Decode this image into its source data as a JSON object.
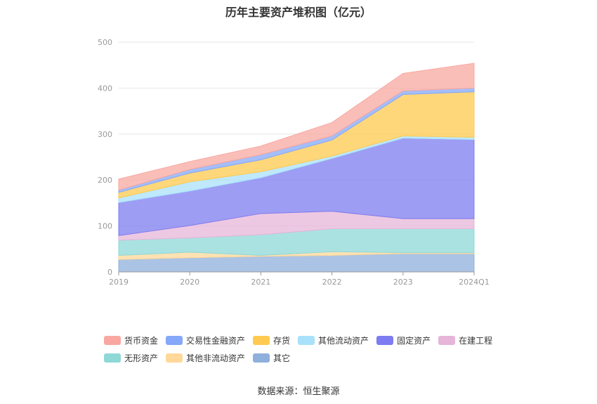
{
  "chart_data": {
    "type": "area",
    "title": "历年主要资产堆积图（亿元）",
    "categories": [
      "2019",
      "2020",
      "2021",
      "2022",
      "2023",
      "2024Q1"
    ],
    "ylim": [
      0,
      500
    ],
    "yticks": [
      0,
      100,
      200,
      300,
      400,
      500
    ],
    "grid": true,
    "legend_position": "bottom",
    "stacked": true,
    "series": [
      {
        "name": "其它",
        "color": "#8fb0dc",
        "values": [
          27,
          31,
          34,
          36,
          40,
          40
        ]
      },
      {
        "name": "其他非流动资产",
        "color": "#ffd89a",
        "values": [
          9,
          12,
          2,
          8,
          2,
          2
        ]
      },
      {
        "name": "无形资产",
        "color": "#8ed8d8",
        "values": [
          33,
          31,
          45,
          50,
          52,
          52
        ]
      },
      {
        "name": "在建工程",
        "color": "#e6b5d8",
        "values": [
          10,
          27,
          46,
          38,
          22,
          22
        ]
      },
      {
        "name": "固定资产",
        "color": "#7d7cf0",
        "values": [
          72,
          75,
          78,
          115,
          175,
          172
        ]
      },
      {
        "name": "其他流动资产",
        "color": "#a9e1fa",
        "values": [
          10,
          20,
          13,
          5,
          5,
          5
        ]
      },
      {
        "name": "存货",
        "color": "#ffca4f",
        "values": [
          12,
          19,
          26,
          35,
          90,
          99
        ]
      },
      {
        "name": "交易性金融资产",
        "color": "#86a8f8",
        "values": [
          5,
          8,
          11,
          9,
          8,
          8
        ]
      },
      {
        "name": "货币资金",
        "color": "#f8a8a0",
        "values": [
          24,
          17,
          19,
          29,
          38,
          54
        ]
      }
    ]
  },
  "legend": {
    "rows": [
      [
        {
          "label": "货币资金",
          "color": "#f8a8a0"
        },
        {
          "label": "交易性金融资产",
          "color": "#86a8f8"
        },
        {
          "label": "存货",
          "color": "#ffca4f"
        },
        {
          "label": "其他流动资产",
          "color": "#a9e1fa"
        },
        {
          "label": "固定资产",
          "color": "#7d7cf0"
        },
        {
          "label": "在建工程",
          "color": "#e6b5d8"
        }
      ],
      [
        {
          "label": "无形资产",
          "color": "#8ed8d8"
        },
        {
          "label": "其他非流动资产",
          "color": "#ffd89a"
        },
        {
          "label": "其它",
          "color": "#8fb0dc"
        }
      ]
    ]
  },
  "source": "数据来源：恒生聚源"
}
